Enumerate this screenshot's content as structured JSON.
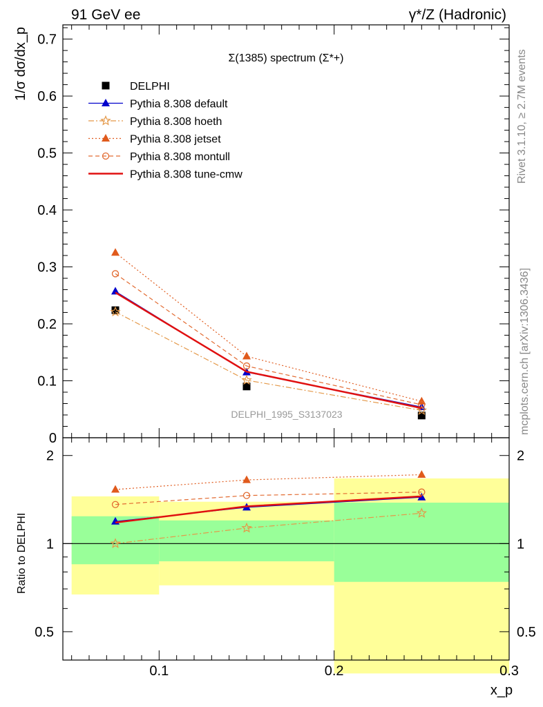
{
  "header": {
    "left": "91 GeV ee",
    "right": "γ*/Z (Hadronic)"
  },
  "side_text": {
    "rivet": "Rivet 3.1.10, ≥ 2.7M events",
    "mcplots": "mcplots.cern.ch [arXiv:1306.3436]"
  },
  "chart_data": [
    {
      "type": "line",
      "panel": "main",
      "title": "Σ(1385) spectrum (Σ*+)",
      "ylabel": "1/σ dσ/dx_p",
      "watermark": "DELPHI_1995_S3137023",
      "xlim": [
        0.045,
        0.3
      ],
      "ylim": [
        0,
        0.725
      ],
      "yticks": [
        0,
        0.1,
        0.2,
        0.3,
        0.4,
        0.5,
        0.6,
        0.7
      ],
      "ytick_labels": [
        "0",
        "0.1",
        "0.2",
        "0.3",
        "0.4",
        "0.5",
        "0.6",
        "0.7"
      ],
      "x": [
        0.075,
        0.15,
        0.25
      ],
      "legend_position": "top-left",
      "series": [
        {
          "name": "DELPHI",
          "values": [
            0.224,
            0.09,
            0.039
          ],
          "color": "#000000",
          "marker": "square",
          "dash": "none",
          "width": 0
        },
        {
          "name": "Pythia 8.308 default",
          "values": [
            0.257,
            0.115,
            0.054
          ],
          "color": "#0000cc",
          "marker": "triangle",
          "dash": "solid",
          "width": 1.2
        },
        {
          "name": "Pythia 8.308 hoeth",
          "values": [
            0.221,
            0.101,
            0.048
          ],
          "color": "#e49848",
          "marker": "star",
          "dash": "dashdot",
          "width": 1.2
        },
        {
          "name": "Pythia 8.308 jetset",
          "values": [
            0.325,
            0.143,
            0.064
          ],
          "color": "#e05a1c",
          "marker": "triangle",
          "dash": "dotted",
          "width": 1.2
        },
        {
          "name": "Pythia 8.308 montull",
          "values": [
            0.288,
            0.126,
            0.058
          ],
          "color": "#e26a30",
          "marker": "circle",
          "dash": "dashed",
          "width": 1.2
        },
        {
          "name": "Pythia 8.308 tune-cmw",
          "values": [
            0.255,
            0.116,
            0.052
          ],
          "color": "#e01010",
          "marker": "none",
          "dash": "solid",
          "width": 2.5
        }
      ]
    },
    {
      "type": "line",
      "panel": "ratio",
      "ylabel": "Ratio to DELPHI",
      "xlabel": "x_p",
      "xlim": [
        0.045,
        0.3
      ],
      "ylim": [
        0.4,
        2.3
      ],
      "log_y": true,
      "yticks": [
        0.5,
        1,
        2
      ],
      "ytick_labels": [
        "0.5",
        "1",
        "2"
      ],
      "xticks": [
        0.1,
        0.2,
        0.3
      ],
      "xtick_labels": [
        "0.1",
        "0.2",
        "0.3"
      ],
      "x": [
        0.075,
        0.15,
        0.25
      ],
      "bands": [
        {
          "xmin": 0.05,
          "xmax": 0.1,
          "yellow": [
            0.67,
            1.45
          ],
          "green": [
            0.85,
            1.24
          ]
        },
        {
          "xmin": 0.1,
          "xmax": 0.2,
          "yellow": [
            0.72,
            1.39
          ],
          "green": [
            0.87,
            1.2
          ]
        },
        {
          "xmin": 0.2,
          "xmax": 0.3,
          "yellow": [
            0.36,
            1.67
          ],
          "green": [
            0.74,
            1.38
          ]
        }
      ],
      "series": [
        {
          "name": "Pythia 8.308 default",
          "values": [
            1.19,
            1.33,
            1.44
          ]
        },
        {
          "name": "Pythia 8.308 hoeth",
          "values": [
            1.0,
            1.13,
            1.27
          ]
        },
        {
          "name": "Pythia 8.308 jetset",
          "values": [
            1.53,
            1.65,
            1.72
          ]
        },
        {
          "name": "Pythia 8.308 montull",
          "values": [
            1.36,
            1.46,
            1.5
          ]
        },
        {
          "name": "Pythia 8.308 tune-cmw",
          "values": [
            1.18,
            1.34,
            1.45
          ]
        }
      ]
    }
  ]
}
